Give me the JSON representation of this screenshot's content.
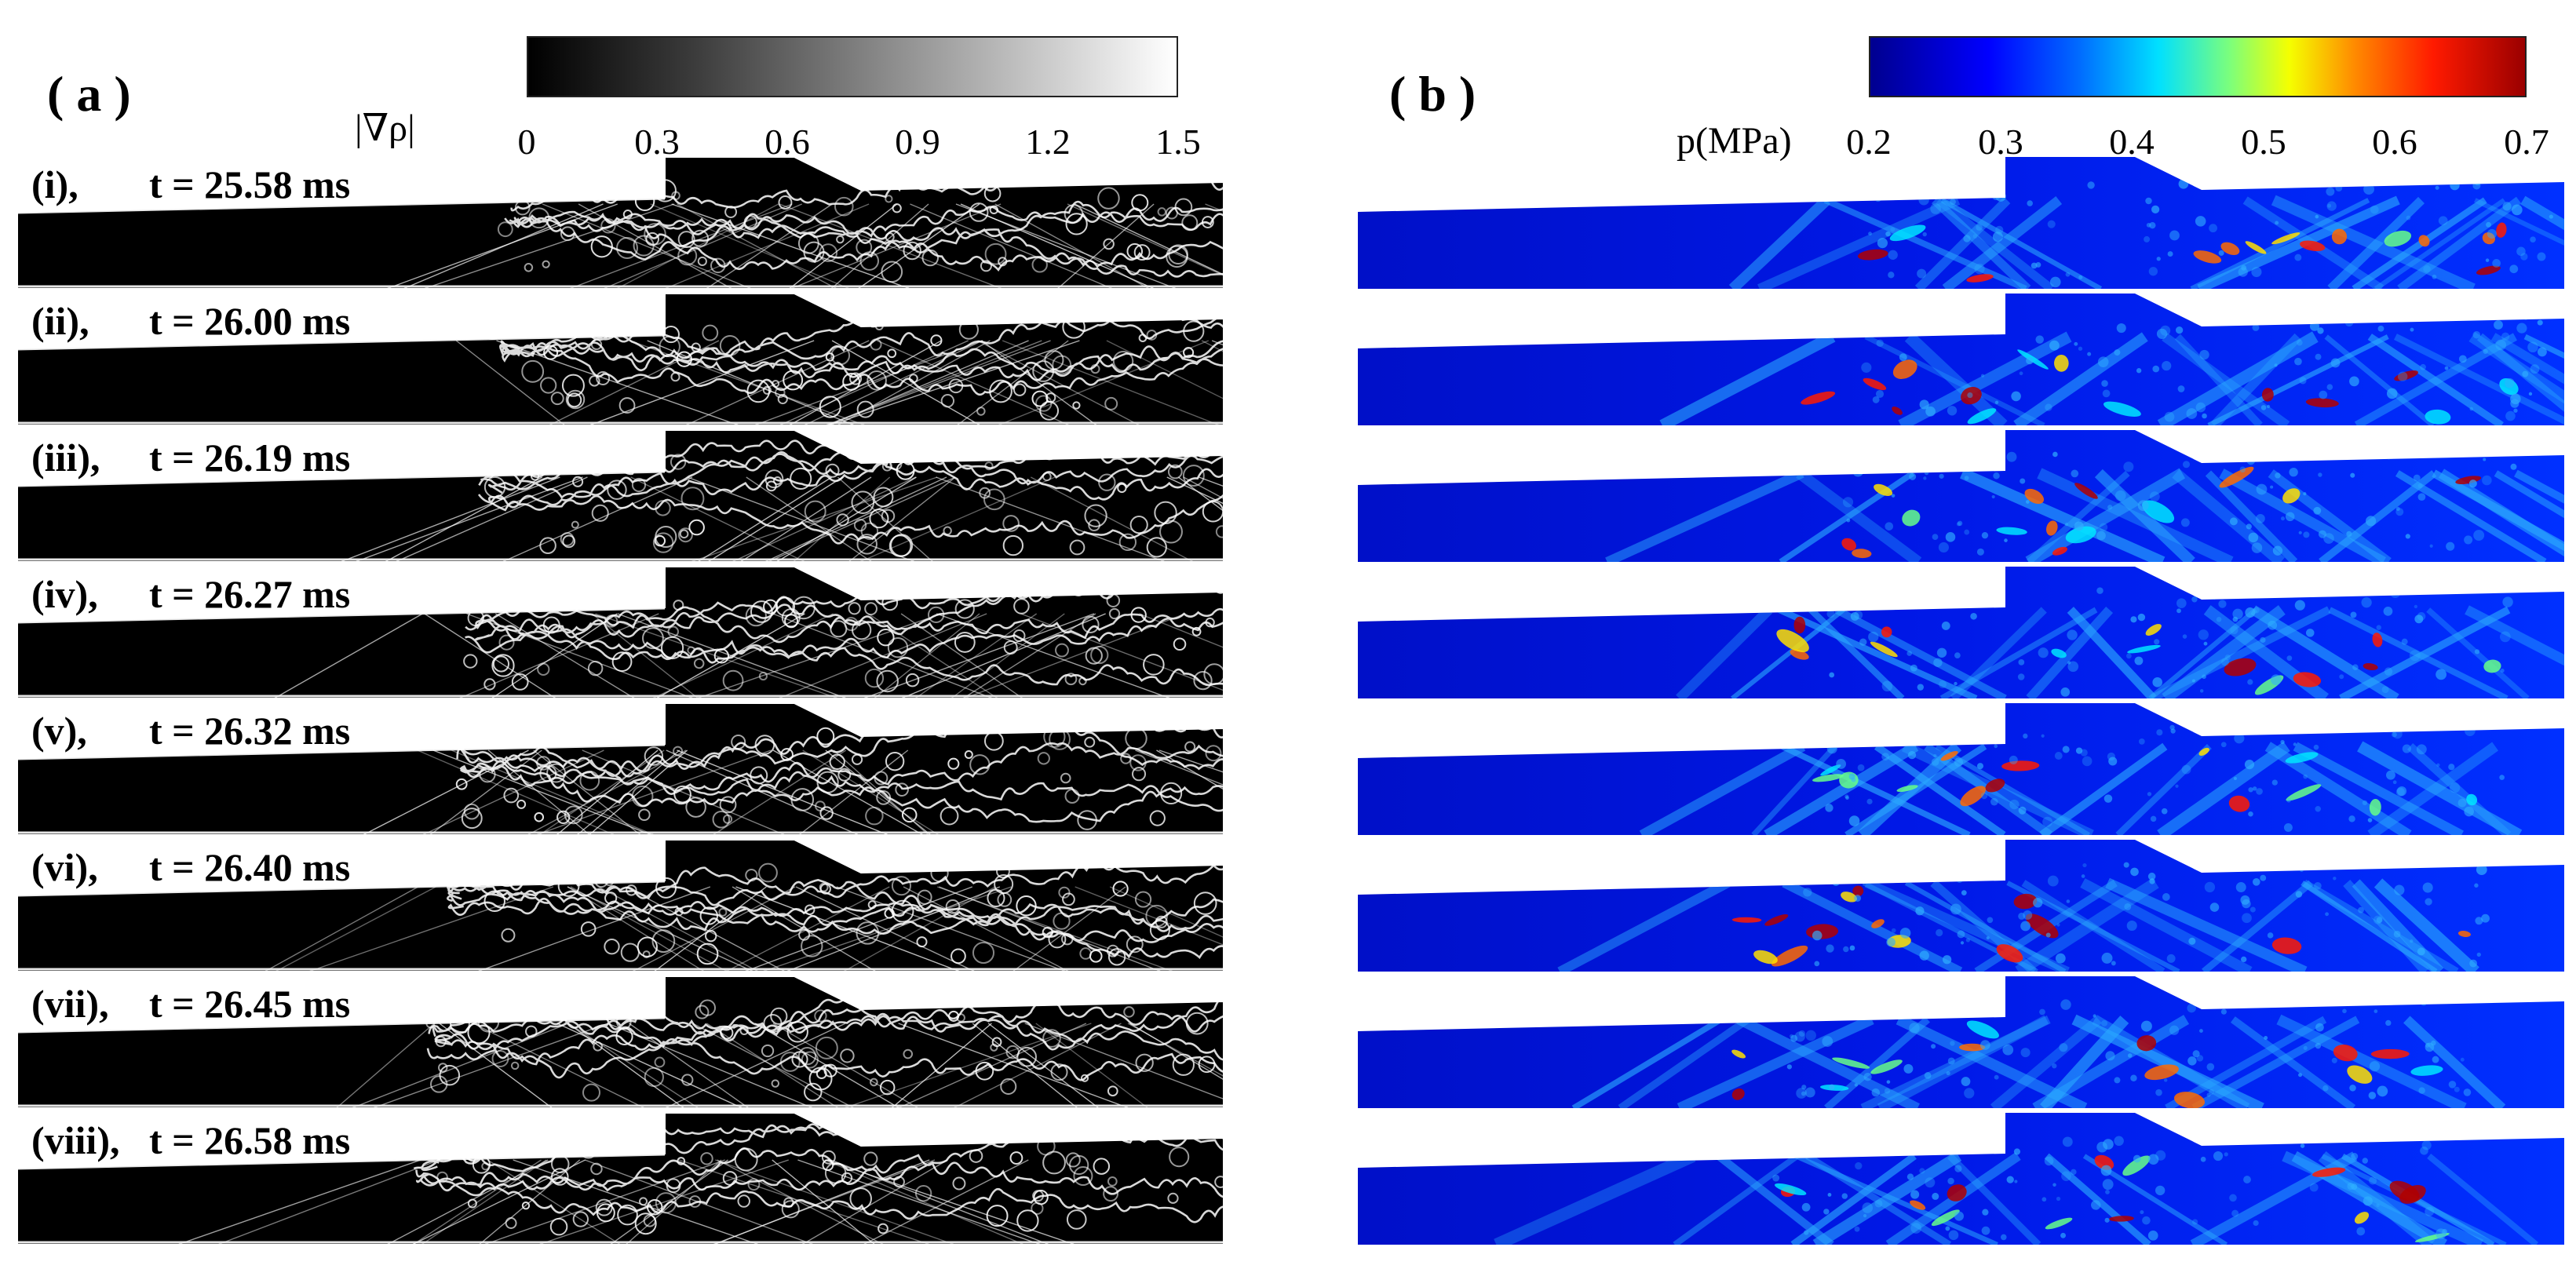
{
  "panels": {
    "a": {
      "label": "( a )",
      "quantity": "|∇ρ|",
      "ticks": [
        "0",
        "0.3",
        "0.6",
        "0.9",
        "1.2",
        "1.5"
      ],
      "colormap": "grayscale"
    },
    "b": {
      "label": "( b )",
      "quantity": "p(MPa)",
      "ticks": [
        "0.2",
        "0.3",
        "0.4",
        "0.5",
        "0.6",
        "0.7"
      ],
      "colormap": "jet"
    }
  },
  "frames": [
    {
      "id": "(i),",
      "time": "t = 25.58 ms"
    },
    {
      "id": "(ii),",
      "time": "t = 26.00 ms"
    },
    {
      "id": "(iii),",
      "time": "t = 26.19 ms"
    },
    {
      "id": "(iv),",
      "time": "t = 26.27 ms"
    },
    {
      "id": "(v),",
      "time": "t = 26.32 ms"
    },
    {
      "id": "(vi),",
      "time": "t = 26.40 ms"
    },
    {
      "id": "(vii),",
      "time": "t = 26.45 ms"
    },
    {
      "id": "(viii),",
      "time": "t = 26.58 ms"
    }
  ],
  "colors": {
    "schlieren_background": "#000000",
    "schlieren_features": "#ffffff",
    "pressure_background": "#0a1ad8",
    "pressure_high": "#ff2000"
  }
}
